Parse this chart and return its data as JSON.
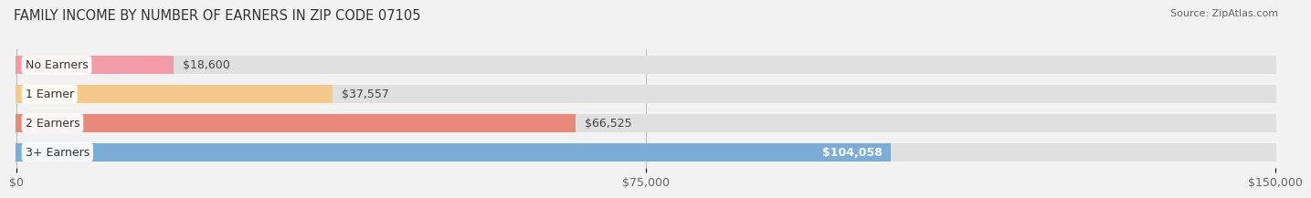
{
  "title": "FAMILY INCOME BY NUMBER OF EARNERS IN ZIP CODE 07105",
  "source": "Source: ZipAtlas.com",
  "categories": [
    "No Earners",
    "1 Earner",
    "2 Earners",
    "3+ Earners"
  ],
  "values": [
    18600,
    37557,
    66525,
    104058
  ],
  "bar_colors": [
    "#f49baa",
    "#f5c98a",
    "#e8897a",
    "#7badd6"
  ],
  "value_labels": [
    "$18,600",
    "$37,557",
    "$66,525",
    "$104,058"
  ],
  "xlim": [
    0,
    150000
  ],
  "xticks": [
    0,
    75000,
    150000
  ],
  "xticklabels": [
    "$0",
    "$75,000",
    "$150,000"
  ],
  "background_color": "#f2f2f2",
  "bar_bg_color": "#e0e0e0",
  "title_fontsize": 10.5,
  "bar_height": 0.62,
  "figsize": [
    14.06,
    2.33
  ]
}
